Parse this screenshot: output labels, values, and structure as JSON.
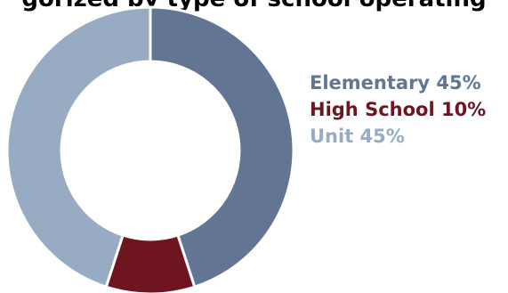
{
  "chart_data": {
    "type": "pie",
    "style": "donut",
    "title": "gorized by type of school operating",
    "slices": [
      {
        "label": "Elementary",
        "value": 45,
        "display": "Elementary 45%",
        "color": "#627693"
      },
      {
        "label": "High School",
        "value": 10,
        "display": "High School 10%",
        "color": "#6f1520"
      },
      {
        "label": "Unit",
        "value": 45,
        "display": "Unit 45%",
        "color": "#97abc2"
      }
    ],
    "legend_position": "right",
    "start_angle_deg": 0,
    "direction": "clockwise"
  }
}
